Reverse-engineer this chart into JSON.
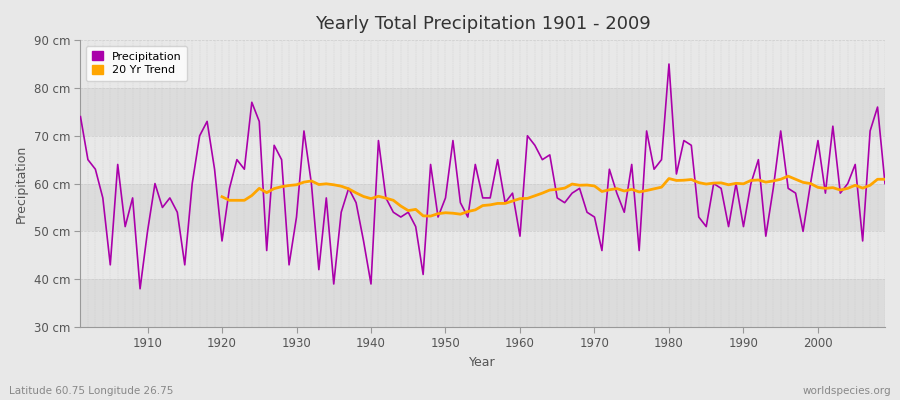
{
  "title": "Yearly Total Precipitation 1901 - 2009",
  "xlabel": "Year",
  "ylabel": "Precipitation",
  "lat_lon_label": "Latitude 60.75 Longitude 26.75",
  "source_label": "worldspecies.org",
  "ylim": [
    30,
    90
  ],
  "ytick_labels": [
    "30 cm",
    "40 cm",
    "50 cm",
    "60 cm",
    "70 cm",
    "80 cm",
    "90 cm"
  ],
  "ytick_values": [
    30,
    40,
    50,
    60,
    70,
    80,
    90
  ],
  "xlim": [
    1901,
    2009
  ],
  "precipitation_color": "#AA00AA",
  "trend_color": "#FFA500",
  "bg_color": "#E8E8E8",
  "plot_bg": "#EBEBEB",
  "band_light": "#E8E8E8",
  "band_dark": "#DCDCDC",
  "grid_color": "#BBBBBB",
  "years": [
    1901,
    1902,
    1903,
    1904,
    1905,
    1906,
    1907,
    1908,
    1909,
    1910,
    1911,
    1912,
    1913,
    1914,
    1915,
    1916,
    1917,
    1918,
    1919,
    1920,
    1921,
    1922,
    1923,
    1924,
    1925,
    1926,
    1927,
    1928,
    1929,
    1930,
    1931,
    1932,
    1933,
    1934,
    1935,
    1936,
    1937,
    1938,
    1939,
    1940,
    1941,
    1942,
    1943,
    1944,
    1945,
    1946,
    1947,
    1948,
    1949,
    1950,
    1951,
    1952,
    1953,
    1954,
    1955,
    1956,
    1957,
    1958,
    1959,
    1960,
    1961,
    1962,
    1963,
    1964,
    1965,
    1966,
    1967,
    1968,
    1969,
    1970,
    1971,
    1972,
    1973,
    1974,
    1975,
    1976,
    1977,
    1978,
    1979,
    1980,
    1981,
    1982,
    1983,
    1984,
    1985,
    1986,
    1987,
    1988,
    1989,
    1990,
    1991,
    1992,
    1993,
    1994,
    1995,
    1996,
    1997,
    1998,
    1999,
    2000,
    2001,
    2002,
    2003,
    2004,
    2005,
    2006,
    2007,
    2008,
    2009
  ],
  "precipitation": [
    74,
    65,
    63,
    57,
    43,
    64,
    51,
    57,
    38,
    50,
    60,
    55,
    57,
    54,
    43,
    60,
    70,
    73,
    63,
    48,
    59,
    65,
    63,
    77,
    73,
    46,
    68,
    65,
    43,
    53,
    71,
    60,
    42,
    57,
    39,
    54,
    59,
    56,
    48,
    39,
    69,
    57,
    54,
    53,
    54,
    51,
    41,
    64,
    53,
    57,
    69,
    56,
    53,
    64,
    57,
    57,
    65,
    56,
    58,
    49,
    70,
    68,
    65,
    66,
    57,
    56,
    58,
    59,
    54,
    53,
    46,
    63,
    58,
    54,
    64,
    46,
    71,
    63,
    65,
    85,
    62,
    69,
    68,
    53,
    51,
    60,
    59,
    51,
    60,
    51,
    60,
    65,
    49,
    59,
    71,
    59,
    58,
    50,
    60,
    69,
    58,
    72,
    58,
    60,
    64,
    48,
    71,
    76,
    60
  ]
}
